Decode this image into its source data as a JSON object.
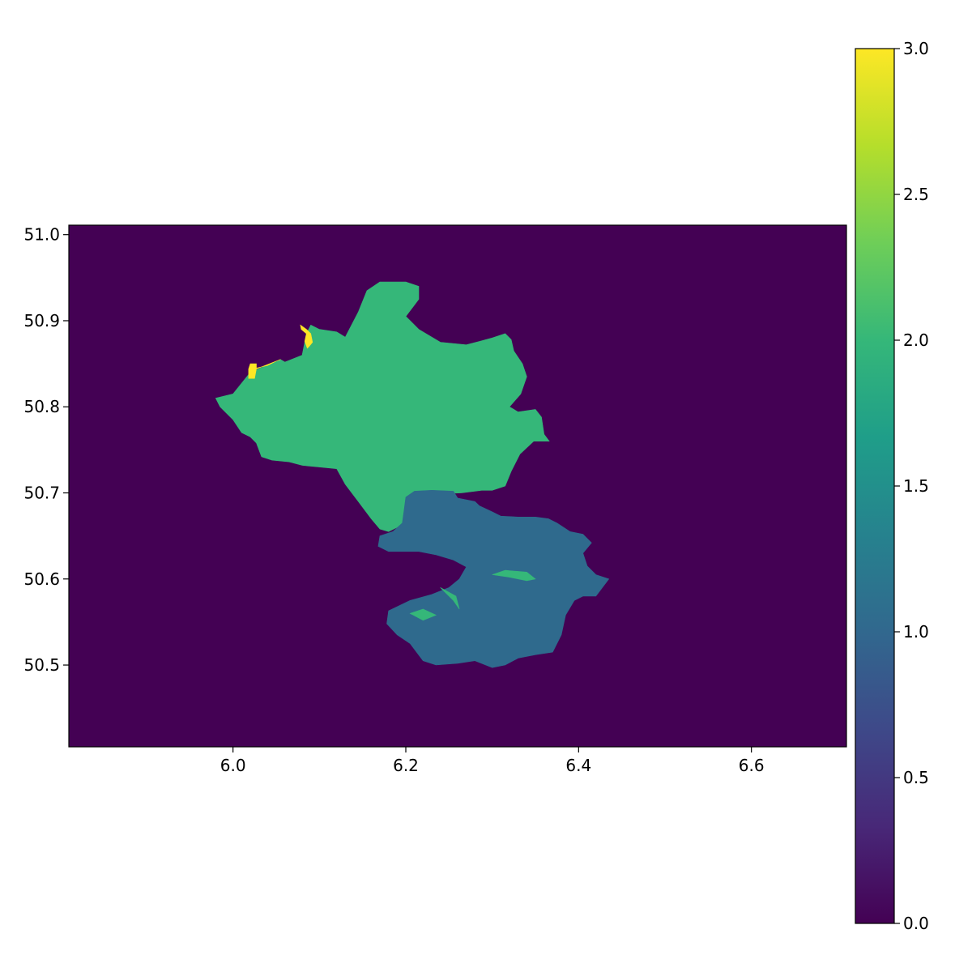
{
  "chart_data": {
    "type": "heatmap",
    "title": "",
    "xlabel": "",
    "ylabel": "",
    "xlim": [
      5.81,
      6.71
    ],
    "ylim": [
      50.405,
      51.011
    ],
    "xticks": [
      "6.0",
      "6.2",
      "6.4",
      "6.6"
    ],
    "xtick_values": [
      6.0,
      6.2,
      6.4,
      6.6
    ],
    "yticks": [
      "51.0",
      "50.9",
      "50.8",
      "50.7",
      "50.6",
      "50.5"
    ],
    "ytick_values": [
      51.0,
      50.9,
      50.8,
      50.7,
      50.6,
      50.5
    ],
    "colormap": "viridis",
    "colorbar": {
      "range": [
        0.0,
        3.0
      ],
      "ticks": [
        "3.0",
        "2.5",
        "2.0",
        "1.5",
        "1.0",
        "0.5",
        "0.0"
      ],
      "tick_values": [
        3.0,
        2.5,
        2.0,
        1.5,
        1.0,
        0.5,
        0.0
      ],
      "stops": [
        "#440154",
        "#482878",
        "#3e4989",
        "#31688e",
        "#26828e",
        "#1f9e89",
        "#35b779",
        "#6ece58",
        "#b5de2b",
        "#fde725"
      ]
    },
    "classes": [
      {
        "value": 0,
        "color": "#440154"
      },
      {
        "value": 1,
        "color": "#2f6a8d"
      },
      {
        "value": 2,
        "color": "#35b779"
      },
      {
        "value": 3,
        "color": "#fde725"
      }
    ],
    "regions": [
      {
        "value": 2,
        "lonlat": [
          [
            5.98,
            50.81
          ],
          [
            6.0,
            50.815
          ],
          [
            6.02,
            50.84
          ],
          [
            6.055,
            50.855
          ],
          [
            6.06,
            50.852
          ],
          [
            6.08,
            50.86
          ],
          [
            6.085,
            50.885
          ],
          [
            6.09,
            50.895
          ],
          [
            6.1,
            50.89
          ],
          [
            6.12,
            50.887
          ],
          [
            6.13,
            50.881
          ],
          [
            6.145,
            50.91
          ],
          [
            6.155,
            50.935
          ],
          [
            6.17,
            50.945
          ],
          [
            6.2,
            50.945
          ],
          [
            6.215,
            50.94
          ],
          [
            6.215,
            50.925
          ],
          [
            6.2,
            50.905
          ],
          [
            6.215,
            50.89
          ],
          [
            6.24,
            50.875
          ],
          [
            6.27,
            50.872
          ],
          [
            6.285,
            50.876
          ],
          [
            6.3,
            50.88
          ],
          [
            6.315,
            50.885
          ],
          [
            6.322,
            50.878
          ],
          [
            6.325,
            50.865
          ],
          [
            6.335,
            50.85
          ],
          [
            6.34,
            50.835
          ],
          [
            6.333,
            50.815
          ],
          [
            6.32,
            50.8
          ],
          [
            6.33,
            50.794
          ],
          [
            6.35,
            50.797
          ],
          [
            6.357,
            50.788
          ],
          [
            6.36,
            50.768
          ],
          [
            6.366,
            50.76
          ],
          [
            6.348,
            50.76
          ],
          [
            6.332,
            50.745
          ],
          [
            6.322,
            50.725
          ],
          [
            6.315,
            50.708
          ],
          [
            6.3,
            50.703
          ],
          [
            6.288,
            50.703
          ],
          [
            6.265,
            50.7
          ],
          [
            6.225,
            50.698
          ],
          [
            6.21,
            50.7
          ],
          [
            6.2,
            50.695
          ],
          [
            6.198,
            50.68
          ],
          [
            6.2,
            50.668
          ],
          [
            6.19,
            50.66
          ],
          [
            6.18,
            50.655
          ],
          [
            6.17,
            50.658
          ],
          [
            6.16,
            50.67
          ],
          [
            6.145,
            50.69
          ],
          [
            6.13,
            50.71
          ],
          [
            6.12,
            50.728
          ],
          [
            6.1,
            50.73
          ],
          [
            6.08,
            50.732
          ],
          [
            6.065,
            50.736
          ],
          [
            6.045,
            50.738
          ],
          [
            6.033,
            50.742
          ],
          [
            6.027,
            50.758
          ],
          [
            6.02,
            50.765
          ],
          [
            6.01,
            50.77
          ],
          [
            6.0,
            50.785
          ],
          [
            5.985,
            50.8
          ]
        ]
      },
      {
        "value": 1,
        "lonlat": [
          [
            6.21,
            50.702
          ],
          [
            6.2,
            50.695
          ],
          [
            6.198,
            50.68
          ],
          [
            6.196,
            50.665
          ],
          [
            6.185,
            50.655
          ],
          [
            6.17,
            50.65
          ],
          [
            6.168,
            50.638
          ],
          [
            6.18,
            50.632
          ],
          [
            6.2,
            50.632
          ],
          [
            6.215,
            50.632
          ],
          [
            6.235,
            50.628
          ],
          [
            6.255,
            50.622
          ],
          [
            6.27,
            50.614
          ],
          [
            6.262,
            50.6
          ],
          [
            6.25,
            50.59
          ],
          [
            6.23,
            50.582
          ],
          [
            6.205,
            50.575
          ],
          [
            6.18,
            50.563
          ],
          [
            6.178,
            50.548
          ],
          [
            6.19,
            50.535
          ],
          [
            6.205,
            50.525
          ],
          [
            6.22,
            50.505
          ],
          [
            6.235,
            50.5
          ],
          [
            6.26,
            50.502
          ],
          [
            6.28,
            50.505
          ],
          [
            6.3,
            50.497
          ],
          [
            6.315,
            50.5
          ],
          [
            6.33,
            50.508
          ],
          [
            6.35,
            50.512
          ],
          [
            6.37,
            50.515
          ],
          [
            6.38,
            50.535
          ],
          [
            6.385,
            50.558
          ],
          [
            6.395,
            50.575
          ],
          [
            6.405,
            50.58
          ],
          [
            6.42,
            50.58
          ],
          [
            6.435,
            50.6
          ],
          [
            6.42,
            50.605
          ],
          [
            6.41,
            50.615
          ],
          [
            6.405,
            50.63
          ],
          [
            6.415,
            50.642
          ],
          [
            6.405,
            50.652
          ],
          [
            6.39,
            50.655
          ],
          [
            6.375,
            50.665
          ],
          [
            6.365,
            50.67
          ],
          [
            6.35,
            50.672
          ],
          [
            6.33,
            50.672
          ],
          [
            6.31,
            50.673
          ],
          [
            6.3,
            50.678
          ],
          [
            6.285,
            50.685
          ],
          [
            6.28,
            50.69
          ],
          [
            6.26,
            50.694
          ],
          [
            6.255,
            50.702
          ],
          [
            6.23,
            50.703
          ]
        ]
      },
      {
        "value": 2,
        "lonlat": [
          [
            6.24,
            50.59
          ],
          [
            6.255,
            50.575
          ],
          [
            6.262,
            50.565
          ],
          [
            6.258,
            50.58
          ]
        ]
      },
      {
        "value": 2,
        "lonlat": [
          [
            6.3,
            50.605
          ],
          [
            6.32,
            50.602
          ],
          [
            6.34,
            50.598
          ],
          [
            6.35,
            50.6
          ],
          [
            6.34,
            50.608
          ],
          [
            6.315,
            50.61
          ]
        ]
      },
      {
        "value": 2,
        "lonlat": [
          [
            6.205,
            50.56
          ],
          [
            6.22,
            50.552
          ],
          [
            6.235,
            50.558
          ],
          [
            6.22,
            50.565
          ]
        ]
      },
      {
        "value": 3,
        "lonlat": [
          [
            6.02,
            50.85
          ],
          [
            6.027,
            50.85
          ],
          [
            6.027,
            50.845
          ],
          [
            6.04,
            50.848
          ],
          [
            6.05,
            50.853
          ],
          [
            6.055,
            50.855
          ],
          [
            6.042,
            50.85
          ],
          [
            6.027,
            50.844
          ],
          [
            6.025,
            50.833
          ],
          [
            6.018,
            50.833
          ],
          [
            6.018,
            50.844
          ]
        ]
      },
      {
        "value": 3,
        "lonlat": [
          [
            6.078,
            50.895
          ],
          [
            6.085,
            50.89
          ],
          [
            6.09,
            50.885
          ],
          [
            6.092,
            50.875
          ],
          [
            6.088,
            50.87
          ],
          [
            6.086,
            50.868
          ],
          [
            6.083,
            50.876
          ],
          [
            6.085,
            50.885
          ],
          [
            6.079,
            50.89
          ]
        ]
      }
    ]
  }
}
